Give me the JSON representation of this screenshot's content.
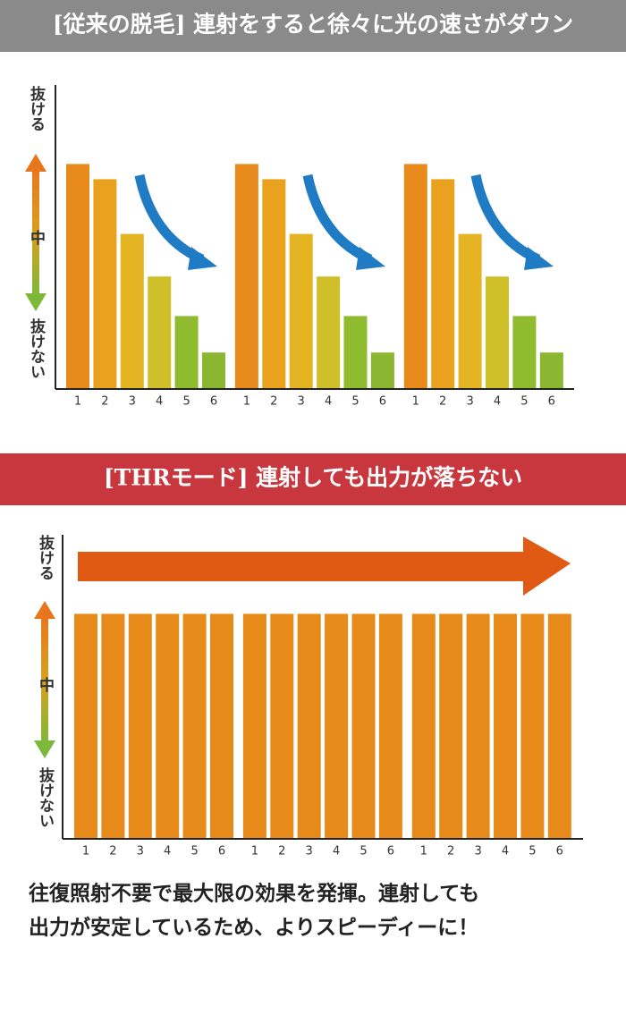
{
  "chart_data": [
    {
      "type": "bar",
      "title": "[従来の脱毛] 連射をすると徐々に光の速さがダウン",
      "yaxis_labels": [
        "抜ける",
        "中",
        "抜けない"
      ],
      "categories": [
        "1",
        "2",
        "3",
        "4",
        "5",
        "6",
        "1",
        "2",
        "3",
        "4",
        "5",
        "6",
        "1",
        "2",
        "3",
        "4",
        "5",
        "6"
      ],
      "values": [
        74,
        69,
        51,
        37,
        24,
        12,
        74,
        69,
        51,
        37,
        24,
        12,
        74,
        69,
        51,
        37,
        24,
        12
      ],
      "colors": [
        "#e8891c",
        "#eaa21e",
        "#e4b423",
        "#cfc02a",
        "#8fbb2e",
        "#8ab632",
        "#e8891c",
        "#eaa21e",
        "#e4b423",
        "#cfc02a",
        "#8fbb2e",
        "#8ab632",
        "#e8891c",
        "#eaa21e",
        "#e4b423",
        "#cfc02a",
        "#8fbb2e",
        "#8ab632"
      ],
      "ylim": [
        0,
        100
      ]
    },
    {
      "type": "bar",
      "title": "[THRモード] 連射しても出力が落ちない",
      "yaxis_labels": [
        "抜ける",
        "中",
        "抜けない"
      ],
      "categories": [
        "1",
        "2",
        "3",
        "4",
        "5",
        "6",
        "1",
        "2",
        "3",
        "4",
        "5",
        "6",
        "1",
        "2",
        "3",
        "4",
        "5",
        "6"
      ],
      "values": [
        74,
        74,
        74,
        74,
        74,
        74,
        74,
        74,
        74,
        74,
        74,
        74,
        74,
        74,
        74,
        74,
        74,
        74
      ],
      "color": "#e88a1a",
      "ylim": [
        0,
        100
      ]
    }
  ],
  "caption": [
    "往復照射不要で最大限の効果を発揮。連射しても",
    "出力が安定しているため、よりスピーディーに！"
  ]
}
